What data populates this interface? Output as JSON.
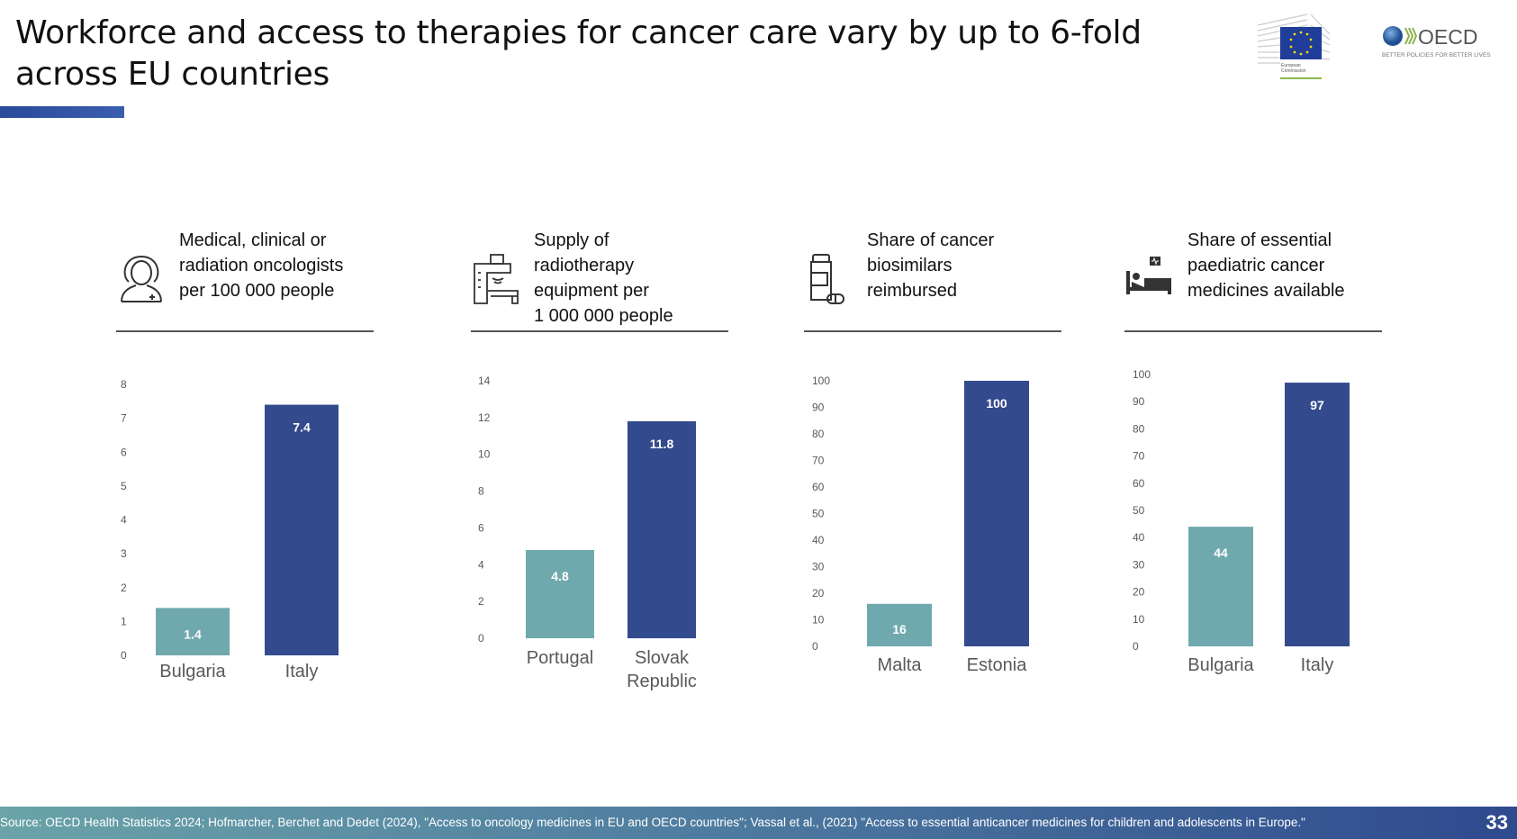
{
  "title": "Workforce and access to therapies for cancer care vary by up to 6-fold across EU countries",
  "logos": {
    "ec": "European Commission",
    "oecd": "OECD",
    "oecd_tagline": "BETTER POLICIES FOR BETTER LIVES"
  },
  "colors": {
    "low": "#6fa9ae",
    "high": "#334a8d"
  },
  "panels": [
    {
      "label": "Medical, clinical or\nradiation oncologists\nper 100 000 people",
      "icon": "oncologist-icon"
    },
    {
      "label": "Supply of\nradiotherapy\nequipment per\n1 000 000 people",
      "icon": "radiotherapy-machine-icon"
    },
    {
      "label": "Share of cancer\nbiosimilars\nreimbursed",
      "icon": "medicine-bottle-icon"
    },
    {
      "label": "Share of essential\npaediatric cancer\nmedicines available",
      "icon": "hospital-bed-icon"
    }
  ],
  "chart_data": [
    {
      "type": "bar",
      "title": "Medical, clinical or radiation oncologists per 100 000 people",
      "categories": [
        "Bulgaria",
        "Italy"
      ],
      "values": [
        1.4,
        7.4
      ],
      "labels": [
        "1.4",
        "7.4"
      ],
      "ylim": [
        0,
        8
      ],
      "yticks": [
        0,
        1,
        2,
        3,
        4,
        5,
        6,
        7,
        8
      ]
    },
    {
      "type": "bar",
      "title": "Supply of radiotherapy equipment per 1 000 000 people",
      "categories": [
        "Portugal",
        "Slovak\nRepublic"
      ],
      "values": [
        4.8,
        11.8
      ],
      "labels": [
        "4.8",
        "11.8"
      ],
      "ylim": [
        0,
        14
      ],
      "yticks": [
        0,
        2,
        4,
        6,
        8,
        10,
        12,
        14
      ]
    },
    {
      "type": "bar",
      "title": "Share of cancer biosimilars reimbursed",
      "categories": [
        "Malta",
        "Estonia"
      ],
      "values": [
        16,
        100
      ],
      "labels": [
        "16",
        "100"
      ],
      "ylim": [
        0,
        100
      ],
      "yticks": [
        0,
        10,
        20,
        30,
        40,
        50,
        60,
        70,
        80,
        90,
        100
      ]
    },
    {
      "type": "bar",
      "title": "Share of essential paediatric cancer medicines available",
      "categories": [
        "Bulgaria",
        "Italy"
      ],
      "values": [
        44,
        97
      ],
      "labels": [
        "44",
        "97"
      ],
      "ylim": [
        0,
        100
      ],
      "yticks": [
        0,
        10,
        20,
        30,
        40,
        50,
        60,
        70,
        80,
        90,
        100
      ]
    }
  ],
  "footer": {
    "source": "Source: OECD Health Statistics 2024; Hofmarcher, Berchet and Dedet (2024), \"Access to oncology medicines in EU and OECD countries\"; Vassal et al., (2021) \"Access to essential anticancer medicines for children and adolescents in Europe.\"",
    "page": "33"
  }
}
